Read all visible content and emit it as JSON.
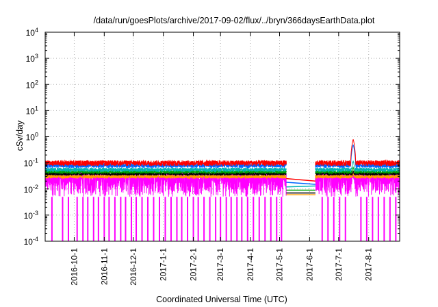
{
  "chart_data": {
    "type": "line",
    "title": "/data/run/goesPlots/archive/2017-09-02/flux/../bryn/366daysEarthData.plot",
    "xlabel": "Coordinated Universal Time (UTC)",
    "ylabel": "cSv/day",
    "yscale": "log",
    "ylim": [
      0.0001,
      10000
    ],
    "xlim": [
      "2016-09-01",
      "2017-09-02"
    ],
    "grid": true,
    "y_ticks": [
      {
        "value": 0.0001,
        "base": "10",
        "exp": "-4"
      },
      {
        "value": 0.001,
        "base": "10",
        "exp": "-3"
      },
      {
        "value": 0.01,
        "base": "10",
        "exp": "-2"
      },
      {
        "value": 0.1,
        "base": "10",
        "exp": "-1"
      },
      {
        "value": 1,
        "base": "10",
        "exp": "0"
      },
      {
        "value": 10,
        "base": "10",
        "exp": "1"
      },
      {
        "value": 100,
        "base": "10",
        "exp": "2"
      },
      {
        "value": 1000,
        "base": "10",
        "exp": "3"
      },
      {
        "value": 10000,
        "base": "10",
        "exp": "4"
      }
    ],
    "x_ticks": [
      {
        "date": "2016-10-01",
        "label": "2016-10-1"
      },
      {
        "date": "2016-11-01",
        "label": "2016-11-1"
      },
      {
        "date": "2016-12-01",
        "label": "2016-12-1"
      },
      {
        "date": "2017-01-01",
        "label": "2017-1-1"
      },
      {
        "date": "2017-02-01",
        "label": "2017-2-1"
      },
      {
        "date": "2017-03-01",
        "label": "2017-3-1"
      },
      {
        "date": "2017-04-01",
        "label": "2017-4-1"
      },
      {
        "date": "2017-05-01",
        "label": "2017-5-1"
      },
      {
        "date": "2017-06-01",
        "label": "2017-6-1"
      },
      {
        "date": "2017-07-01",
        "label": "2017-7-1"
      },
      {
        "date": "2017-08-01",
        "label": "2017-8-1"
      }
    ],
    "data_gap": {
      "start": "2017-05-08",
      "end": "2017-06-07"
    },
    "series": [
      {
        "color": "#ff0000",
        "base": 0.1,
        "spread": 0.015,
        "gap_values": [
          0.025,
          0.02
        ],
        "event_peak": 0.8
      },
      {
        "color": "#0066ff",
        "base": 0.08,
        "spread": 0.01,
        "gap_values": [
          0.018,
          0.015
        ],
        "event_peak": 0.5
      },
      {
        "color": "#00b3b3",
        "base": 0.055,
        "spread": 0.006,
        "gap_values": [
          0.012,
          0.013
        ],
        "event_peak": 0.12
      },
      {
        "color": "#00a000",
        "base": 0.045,
        "spread": 0.004,
        "gap_values": [
          0.009,
          0.009
        ],
        "event_peak": 0.07
      },
      {
        "color": "#000000",
        "base": 0.038,
        "spread": 0.003,
        "gap_values": [
          0.007,
          0.007
        ],
        "event_peak": 0.05
      },
      {
        "color": "#ffa000",
        "base": 0.03,
        "spread": 0.003,
        "gap_values": [
          0.006,
          0.006
        ],
        "event_peak": 0.04
      },
      {
        "color": "#ff00ff",
        "base": 0.025,
        "low": 0.005,
        "dropout_low": 0.0001,
        "gap_values": [
          0.006,
          0.006
        ],
        "event_peak": 0.03
      }
    ],
    "event": {
      "date": "2017-07-16",
      "width_days": 3
    },
    "dropout_dates": [
      "2016-09-08",
      "2016-09-19",
      "2016-09-25",
      "2016-10-04",
      "2016-10-10",
      "2016-10-15",
      "2016-10-21",
      "2016-10-26",
      "2016-11-01",
      "2016-11-06",
      "2016-11-12",
      "2016-11-18",
      "2016-11-23",
      "2016-11-29",
      "2016-12-04",
      "2016-12-10",
      "2016-12-16",
      "2016-12-22",
      "2016-12-28",
      "2017-01-03",
      "2017-01-09",
      "2017-01-15",
      "2017-01-20",
      "2017-01-26",
      "2017-02-01",
      "2017-02-06",
      "2017-02-12",
      "2017-02-18",
      "2017-02-24",
      "2017-03-01",
      "2017-03-07",
      "2017-03-12",
      "2017-03-18",
      "2017-03-23",
      "2017-03-29",
      "2017-04-04",
      "2017-04-10",
      "2017-04-16",
      "2017-04-22",
      "2017-04-28",
      "2017-05-03",
      "2017-06-14",
      "2017-06-20",
      "2017-06-26",
      "2017-07-02",
      "2017-07-08",
      "2017-07-24",
      "2017-07-30",
      "2017-08-05",
      "2017-08-11",
      "2017-08-17",
      "2017-08-23",
      "2017-08-29"
    ]
  }
}
